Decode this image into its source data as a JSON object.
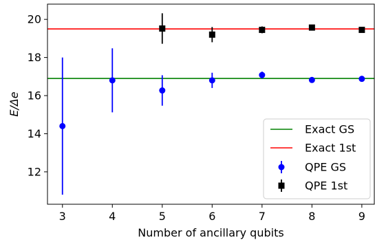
{
  "chart_data": {
    "type": "scatter",
    "xlabel": "Number of ancillary qubits",
    "ylabel": "E/Δe",
    "xlim": [
      2.7,
      9.25
    ],
    "ylim": [
      10.3,
      20.8
    ],
    "xticks": [
      "3",
      "4",
      "5",
      "6",
      "7",
      "8",
      "9"
    ],
    "yticks": [
      "12",
      "14",
      "16",
      "18",
      "20"
    ],
    "grid": false,
    "legend_position": "lower-right",
    "reference_lines": [
      {
        "name": "Exact GS",
        "y": 16.9,
        "color": "#008000"
      },
      {
        "name": "Exact 1st",
        "y": 19.5,
        "color": "#ff0000"
      }
    ],
    "series": [
      {
        "name": "QPE GS",
        "marker": "circle",
        "color": "#0000ff",
        "points": [
          {
            "x": 3,
            "y": 14.4,
            "yerr": 3.6
          },
          {
            "x": 4,
            "y": 16.8,
            "yerr": 1.68
          },
          {
            "x": 5,
            "y": 16.27,
            "yerr": 0.8
          },
          {
            "x": 6,
            "y": 16.8,
            "yerr": 0.4
          },
          {
            "x": 7,
            "y": 17.08,
            "yerr": 0.18
          },
          {
            "x": 8,
            "y": 16.82,
            "yerr": 0.08
          },
          {
            "x": 9,
            "y": 16.88,
            "yerr": 0.05
          }
        ]
      },
      {
        "name": "QPE 1st",
        "marker": "square",
        "color": "#000000",
        "points": [
          {
            "x": 5,
            "y": 19.52,
            "yerr": 0.8
          },
          {
            "x": 6,
            "y": 19.2,
            "yerr": 0.4
          },
          {
            "x": 7,
            "y": 19.45,
            "yerr": 0.18
          },
          {
            "x": 8,
            "y": 19.57,
            "yerr": 0.08
          },
          {
            "x": 9,
            "y": 19.45,
            "yerr": 0.05
          }
        ]
      }
    ]
  }
}
